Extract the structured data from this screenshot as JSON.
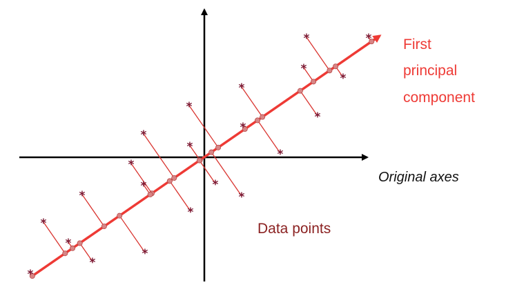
{
  "labels": {
    "principal_component_line1": "First",
    "principal_component_line2": "principal",
    "principal_component_line3": "component",
    "original_axes": "Original axes",
    "data_points": "Data points"
  },
  "colors": {
    "principal_component": "#ee3a35",
    "axes": "#000000",
    "data_point_marker": "#7a1630",
    "projection_line": "#d9342f",
    "projection_dot": "#d98585"
  },
  "symbols": {
    "data_point_marker": "*"
  }
}
